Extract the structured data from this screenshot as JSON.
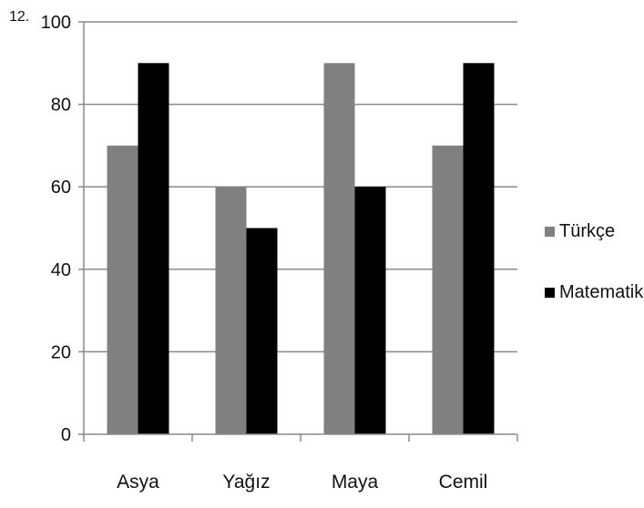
{
  "question_number": "12.",
  "chart_data": {
    "type": "bar",
    "title": "",
    "xlabel": "",
    "ylabel": "",
    "categories": [
      "Asya",
      "Yağız",
      "Maya",
      "Cemil"
    ],
    "ylim": [
      0,
      100
    ],
    "yticks": [
      0,
      20,
      40,
      60,
      80,
      100
    ],
    "grid": true,
    "legend_position": "right",
    "series": [
      {
        "name": "Türkçe",
        "color": "#808080",
        "values": [
          70,
          60,
          90,
          70
        ]
      },
      {
        "name": "Matematik",
        "color": "#000000",
        "values": [
          90,
          50,
          60,
          90
        ]
      }
    ]
  }
}
